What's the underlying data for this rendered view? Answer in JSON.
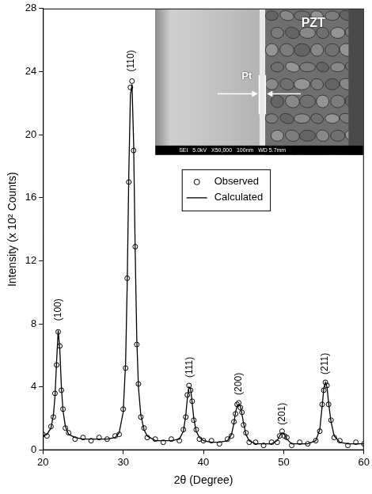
{
  "chart_data": {
    "type": "scatter",
    "x_label": "2θ (Degree)",
    "y_label": "Intensity (x 10² Counts)",
    "x": [
      20,
      20.5,
      21,
      21.3,
      21.5,
      21.7,
      21.9,
      22.1,
      22.3,
      22.5,
      22.8,
      23.2,
      24,
      25,
      26,
      27,
      28,
      29,
      29.5,
      30,
      30.3,
      30.5,
      30.7,
      30.9,
      31.1,
      31.3,
      31.5,
      31.7,
      31.9,
      32.2,
      32.6,
      33,
      34,
      35,
      36,
      37,
      37.5,
      37.8,
      38.0,
      38.2,
      38.4,
      38.6,
      38.8,
      39.1,
      39.5,
      40,
      41,
      42,
      43,
      43.5,
      43.8,
      44.0,
      44.2,
      44.4,
      44.6,
      44.8,
      45.0,
      45.3,
      45.7,
      46.5,
      47.5,
      48.5,
      49.2,
      49.5,
      49.8,
      50.1,
      50.4,
      51,
      52,
      53,
      54,
      54.5,
      54.8,
      55.0,
      55.2,
      55.4,
      55.6,
      55.9,
      56.3,
      57,
      58,
      59,
      60
    ],
    "series": [
      {
        "name": "Observed",
        "color": "#000000",
        "marker": "circle",
        "values": [
          1.0,
          0.9,
          1.5,
          2.1,
          3.6,
          5.4,
          7.5,
          6.6,
          3.8,
          2.6,
          1.4,
          1.1,
          0.7,
          0.8,
          0.6,
          0.8,
          0.7,
          0.9,
          1.0,
          2.6,
          5.2,
          10.9,
          17.0,
          23.0,
          23.4,
          19.0,
          12.9,
          6.7,
          4.2,
          2.1,
          1.4,
          0.8,
          0.7,
          0.5,
          0.7,
          0.6,
          1.3,
          2.1,
          3.5,
          4.1,
          3.8,
          3.1,
          1.9,
          1.3,
          0.7,
          0.6,
          0.6,
          0.4,
          0.7,
          0.9,
          1.8,
          2.3,
          2.9,
          3.0,
          2.7,
          2.4,
          1.6,
          1.1,
          0.5,
          0.5,
          0.3,
          0.5,
          0.5,
          0.9,
          1.2,
          0.9,
          0.8,
          0.3,
          0.5,
          0.4,
          0.6,
          1.2,
          2.9,
          3.8,
          4.3,
          4.1,
          2.9,
          1.9,
          0.8,
          0.6,
          0.3,
          0.5,
          0.4
        ]
      },
      {
        "name": "Calculated",
        "color": "#000000",
        "line_style": "solid",
        "values": [
          0.9,
          1.0,
          1.4,
          2.2,
          3.4,
          5.6,
          7.6,
          6.4,
          4.0,
          2.5,
          1.5,
          1.0,
          0.8,
          0.7,
          0.7,
          0.7,
          0.7,
          0.8,
          1.1,
          2.4,
          5.5,
          10.5,
          17.5,
          22.5,
          23.2,
          19.5,
          12.5,
          7.0,
          4.0,
          2.2,
          1.3,
          0.9,
          0.6,
          0.6,
          0.6,
          0.7,
          1.2,
          2.2,
          3.3,
          4.0,
          3.9,
          3.0,
          2.0,
          1.2,
          0.8,
          0.6,
          0.5,
          0.5,
          0.6,
          1.0,
          1.7,
          2.4,
          2.8,
          2.9,
          2.8,
          2.3,
          1.7,
          1.0,
          0.6,
          0.4,
          0.4,
          0.4,
          0.6,
          0.9,
          1.1,
          1.0,
          0.7,
          0.4,
          0.4,
          0.4,
          0.6,
          1.3,
          2.8,
          3.9,
          4.3,
          4.0,
          3.0,
          1.8,
          0.9,
          0.5,
          0.4,
          0.4,
          0.4
        ]
      }
    ],
    "xlim": [
      20,
      60
    ],
    "ylim": [
      0,
      28
    ],
    "xticks": [
      20,
      30,
      40,
      50,
      60
    ],
    "yticks": [
      0,
      4,
      8,
      12,
      16,
      20,
      24,
      28
    ],
    "grid": false,
    "legend": "upper center",
    "annotations": [
      {
        "text": "(100)",
        "x": 21.9,
        "y": 8.2
      },
      {
        "text": "(110)",
        "x": 31.0,
        "y": 24.0
      },
      {
        "text": "(111)",
        "x": 38.3,
        "y": 4.6
      },
      {
        "text": "(200)",
        "x": 44.4,
        "y": 3.5
      },
      {
        "text": "(201)",
        "x": 49.8,
        "y": 1.6
      },
      {
        "text": "(211)",
        "x": 55.2,
        "y": 4.8
      }
    ],
    "inset": {
      "texts": [
        "PZT",
        "Pt"
      ],
      "caption": "SEI   5.0kV   X50,000   100nm   WD 5.7mm"
    }
  }
}
